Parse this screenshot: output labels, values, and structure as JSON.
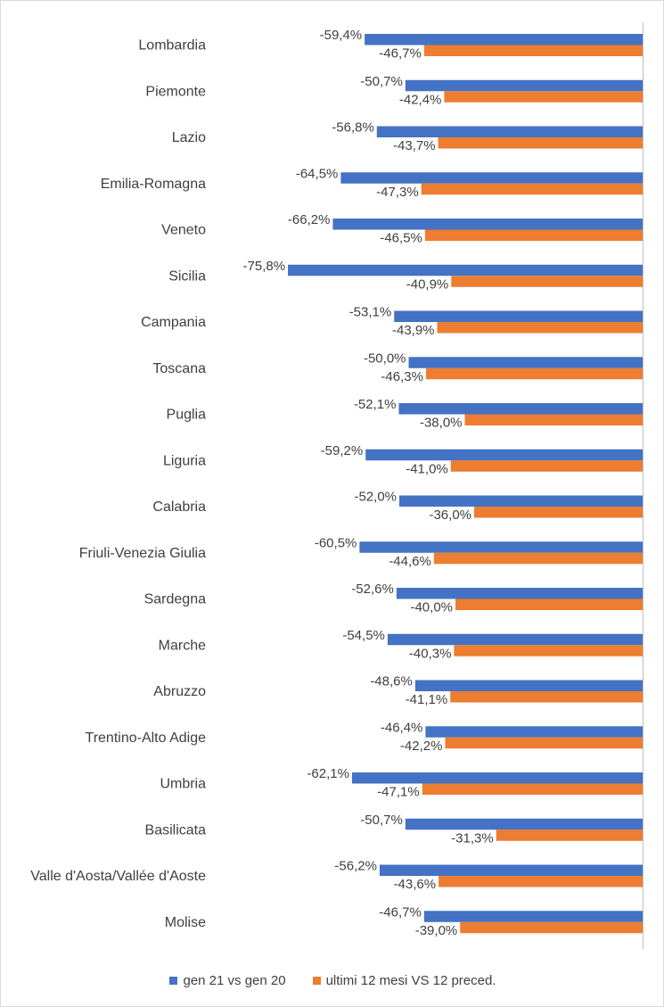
{
  "chart_data": {
    "type": "bar",
    "orientation": "horizontal",
    "categories": [
      "Lombardia",
      "Piemonte",
      "Lazio",
      "Emilia-Romagna",
      "Veneto",
      "Sicilia",
      "Campania",
      "Toscana",
      "Puglia",
      "Liguria",
      "Calabria",
      "Friuli-Venezia Giulia",
      "Sardegna",
      "Marche",
      "Abruzzo",
      "Trentino-Alto Adige",
      "Umbria",
      "Basilicata",
      "Valle d'Aosta/Vallée d'Aoste",
      "Molise"
    ],
    "series": [
      {
        "name": "gen 21 vs gen 20",
        "color": "#4472c4",
        "values": [
          -59.4,
          -50.7,
          -56.8,
          -64.5,
          -66.2,
          -75.8,
          -53.1,
          -50.0,
          -52.1,
          -59.2,
          -52.0,
          -60.5,
          -52.6,
          -54.5,
          -48.6,
          -46.4,
          -62.1,
          -50.7,
          -56.2,
          -46.7
        ],
        "labels": [
          "-59,4%",
          "-50,7%",
          "-56,8%",
          "-64,5%",
          "-66,2%",
          "-75,8%",
          "-53,1%",
          "-50,0%",
          "-52,1%",
          "-59,2%",
          "-52,0%",
          "-60,5%",
          "-52,6%",
          "-54,5%",
          "-48,6%",
          "-46,4%",
          "-62,1%",
          "-50,7%",
          "-56,2%",
          "-46,7%"
        ]
      },
      {
        "name": "ultimi 12 mesi VS 12 preced.",
        "color": "#ed7d31",
        "values": [
          -46.7,
          -42.4,
          -43.7,
          -47.3,
          -46.5,
          -40.9,
          -43.9,
          -46.3,
          -38.0,
          -41.0,
          -36.0,
          -44.6,
          -40.0,
          -40.3,
          -41.1,
          -42.2,
          -47.1,
          -31.3,
          -43.6,
          -39.0
        ],
        "labels": [
          "-46,7%",
          "-42,4%",
          "-43,7%",
          "-47,3%",
          "-46,5%",
          "-40,9%",
          "-43,9%",
          "-46,3%",
          "-38,0%",
          "-41,0%",
          "-36,0%",
          "-44,6%",
          "-40,0%",
          "-40,3%",
          "-41,1%",
          "-42,2%",
          "-47,1%",
          "-31,3%",
          "-43,6%",
          "-39,0%"
        ]
      }
    ],
    "xlim": [
      -80,
      0
    ],
    "grid": false,
    "legend_position": "bottom",
    "title": "",
    "xlabel": "",
    "ylabel": ""
  }
}
